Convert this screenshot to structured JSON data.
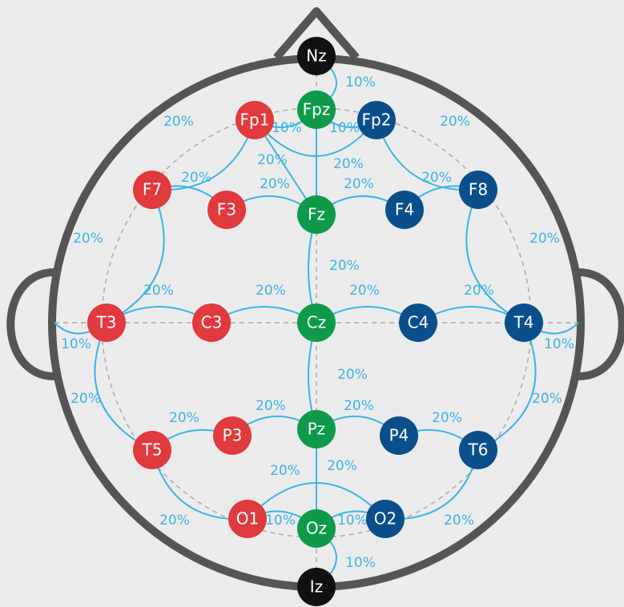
{
  "nodes": [
    {
      "label": "Nz",
      "color": "#111111"
    },
    {
      "label": "Fpz",
      "color": "#0f9a4b"
    },
    {
      "label": "Fp1",
      "color": "#e0393e"
    },
    {
      "label": "Fp2",
      "color": "#0a4f8b"
    },
    {
      "label": "F7",
      "color": "#e0393e"
    },
    {
      "label": "F3",
      "color": "#e0393e"
    },
    {
      "label": "Fz",
      "color": "#0f9a4b"
    },
    {
      "label": "F4",
      "color": "#0a4f8b"
    },
    {
      "label": "F8",
      "color": "#0a4f8b"
    },
    {
      "label": "T3",
      "color": "#e0393e"
    },
    {
      "label": "C3",
      "color": "#e0393e"
    },
    {
      "label": "Cz",
      "color": "#0f9a4b"
    },
    {
      "label": "C4",
      "color": "#0a4f8b"
    },
    {
      "label": "T4",
      "color": "#0a4f8b"
    },
    {
      "label": "T5",
      "color": "#e0393e"
    },
    {
      "label": "P3",
      "color": "#e0393e"
    },
    {
      "label": "Pz",
      "color": "#0f9a4b"
    },
    {
      "label": "P4",
      "color": "#0a4f8b"
    },
    {
      "label": "T6",
      "color": "#0a4f8b"
    },
    {
      "label": "O1",
      "color": "#e0393e"
    },
    {
      "label": "Oz",
      "color": "#0f9a4b"
    },
    {
      "label": "O2",
      "color": "#0a4f8b"
    },
    {
      "label": "Iz",
      "color": "#111111"
    }
  ],
  "labels": [
    "10%",
    "20%",
    "10%",
    "10%",
    "20%",
    "20%",
    "20%",
    "20%",
    "20%",
    "20%",
    "20%",
    "20%",
    "20%",
    "20%",
    "20%",
    "20%",
    "20%",
    "20%",
    "10%",
    "10%",
    "20%",
    "20%",
    "20%",
    "20%",
    "20%",
    "20%",
    "20%",
    "20%",
    "20%",
    "20%",
    "10%",
    "10%",
    "20%",
    "10%"
  ]
}
